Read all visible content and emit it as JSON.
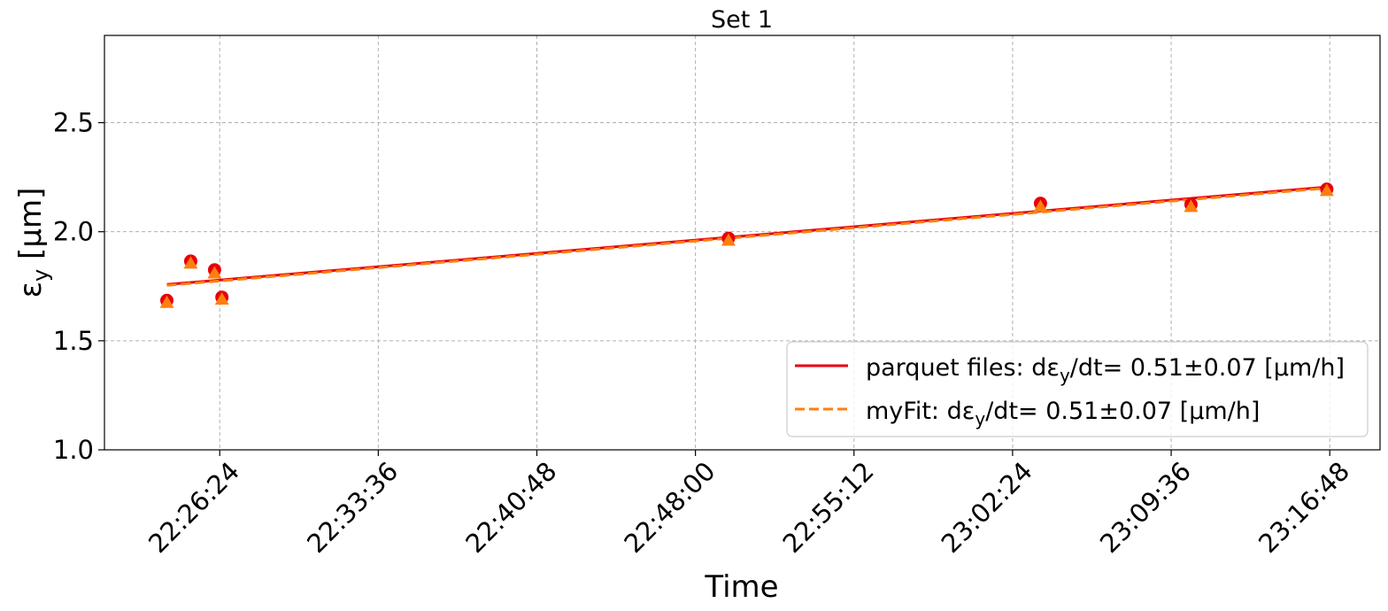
{
  "chart_data": {
    "type": "scatter",
    "title": "Set 1",
    "xlabel": "Time",
    "ylabel": {
      "base": "ε",
      "sub": "y",
      "unit": " [μm]"
    },
    "x_range": [
      "22:21:10",
      "23:19:05"
    ],
    "ylim": [
      1.0,
      2.9
    ],
    "x_ticks": [
      "22:26:24",
      "22:33:36",
      "22:40:48",
      "22:48:00",
      "22:55:12",
      "23:02:24",
      "23:09:36",
      "23:16:48"
    ],
    "y_ticks": [
      "1.0",
      "1.5",
      "2.0",
      "2.5"
    ],
    "grid": true,
    "legend_position": "lower-right",
    "series": [
      {
        "name": "parquet files",
        "marker": "circle",
        "color": "#e8000b",
        "points": [
          {
            "x": "22:24:00",
            "y": 1.685
          },
          {
            "x": "22:25:05",
            "y": 1.865
          },
          {
            "x": "22:26:10",
            "y": 1.825
          },
          {
            "x": "22:26:30",
            "y": 1.7
          },
          {
            "x": "22:49:30",
            "y": 1.97
          },
          {
            "x": "23:03:40",
            "y": 2.13
          },
          {
            "x": "23:10:30",
            "y": 2.125
          },
          {
            "x": "23:16:40",
            "y": 2.195
          }
        ]
      },
      {
        "name": "myFit",
        "marker": "triangle",
        "color": "#ff7f0e",
        "points": [
          {
            "x": "22:24:00",
            "y": 1.675
          },
          {
            "x": "22:25:05",
            "y": 1.855
          },
          {
            "x": "22:26:10",
            "y": 1.81
          },
          {
            "x": "22:26:30",
            "y": 1.69
          },
          {
            "x": "22:49:30",
            "y": 1.96
          },
          {
            "x": "23:03:40",
            "y": 2.115
          },
          {
            "x": "23:10:30",
            "y": 2.115
          },
          {
            "x": "23:16:40",
            "y": 2.188
          }
        ]
      }
    ],
    "fit_lines": [
      {
        "label": "parquet files: dε",
        "label_sub": "y",
        "label_tail": "/dt= 0.51±0.07 [μm/h]",
        "style": "solid",
        "color": "#e8000b",
        "start": {
          "x": "22:24:00",
          "y": 1.758
        },
        "end": {
          "x": "23:16:40",
          "y": 2.205
        }
      },
      {
        "label": "myFit: dε",
        "label_sub": "y",
        "label_tail": "/dt= 0.51±0.07 [μm/h]",
        "style": "dashed",
        "color": "#ff7f0e",
        "start": {
          "x": "22:24:00",
          "y": 1.754
        },
        "end": {
          "x": "23:16:40",
          "y": 2.2
        }
      }
    ]
  }
}
